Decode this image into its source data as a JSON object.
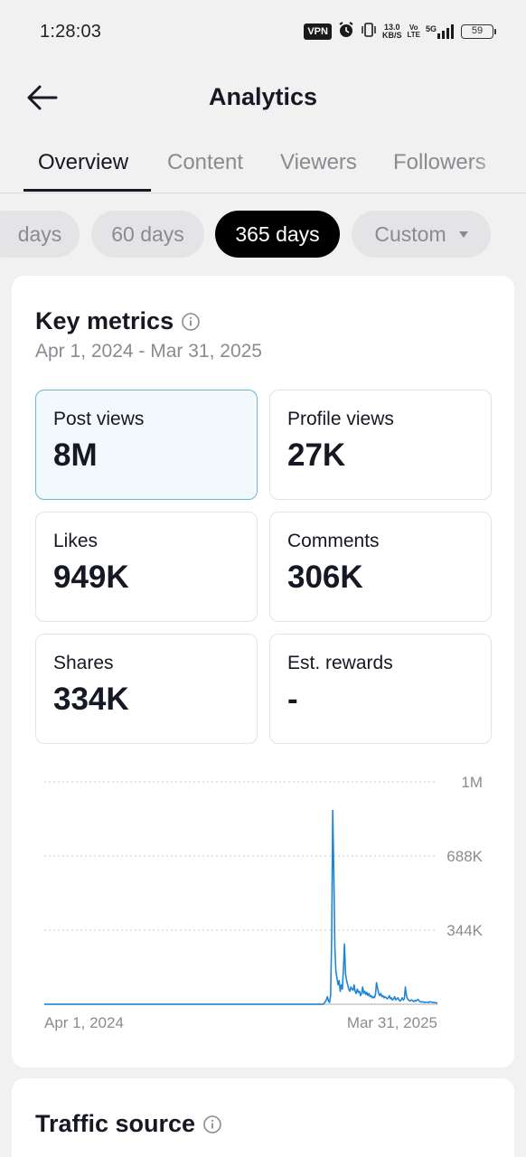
{
  "status_bar": {
    "time": "1:28:03",
    "vpn": "VPN",
    "net_speed_value": "13.0",
    "net_speed_unit": "KB/S",
    "volte_top": "Vo",
    "volte_bottom": "LTE",
    "network": "5G",
    "battery": "59"
  },
  "header": {
    "title": "Analytics"
  },
  "tabs": [
    {
      "label": "Overview",
      "active": true
    },
    {
      "label": "Content",
      "active": false
    },
    {
      "label": "Viewers",
      "active": false
    },
    {
      "label": "Followers",
      "active": false
    }
  ],
  "range_chips": [
    {
      "label": "days",
      "active": false
    },
    {
      "label": "60 days",
      "active": false
    },
    {
      "label": "365 days",
      "active": true
    },
    {
      "label": "Custom",
      "active": false
    }
  ],
  "key_metrics": {
    "title": "Key metrics",
    "date_range": "Apr 1, 2024 - Mar 31, 2025",
    "items": [
      {
        "label": "Post views",
        "value": "8M",
        "selected": true
      },
      {
        "label": "Profile views",
        "value": "27K",
        "selected": false
      },
      {
        "label": "Likes",
        "value": "949K",
        "selected": false
      },
      {
        "label": "Comments",
        "value": "306K",
        "selected": false
      },
      {
        "label": "Shares",
        "value": "334K",
        "selected": false
      },
      {
        "label": "Est. rewards",
        "value": "-",
        "selected": false
      }
    ]
  },
  "chart_data": {
    "type": "line",
    "title": "",
    "xlabel": "",
    "ylabel": "",
    "x_tick_labels": [
      "Apr 1, 2024",
      "Mar 31, 2025"
    ],
    "y_tick_labels": [
      "1M",
      "688K",
      "344K"
    ],
    "y_ticks": [
      1032000,
      688000,
      344000
    ],
    "ylim": [
      0,
      1032000
    ],
    "grid": "horizontal dotted",
    "line_color": "#1f86d6",
    "series": [
      {
        "values": [
          0,
          0,
          0,
          0,
          0,
          0,
          0,
          0,
          0,
          0,
          0,
          0,
          0,
          0,
          0,
          0,
          0,
          0,
          0,
          0,
          0,
          0,
          0,
          0,
          0,
          0,
          0,
          0,
          0,
          0,
          0,
          0,
          0,
          0,
          0,
          0,
          0,
          0,
          0,
          0,
          0,
          0,
          0,
          0,
          0,
          0,
          0,
          0,
          0,
          0,
          0,
          0,
          0,
          0,
          0,
          0,
          0,
          0,
          0,
          0,
          0,
          0,
          0,
          0,
          0,
          0,
          0,
          0,
          0,
          0,
          0,
          0,
          0,
          0,
          0,
          0,
          0,
          0,
          0,
          0,
          0,
          0,
          0,
          0,
          0,
          0,
          0,
          0,
          0,
          0,
          0,
          0,
          0,
          0,
          0,
          0,
          0,
          0,
          0,
          0,
          0,
          0,
          0,
          0,
          0,
          0,
          0,
          0,
          0,
          0,
          0,
          0,
          0,
          0,
          0,
          0,
          0,
          0,
          0,
          0,
          0,
          0,
          0,
          0,
          0,
          0,
          0,
          0,
          0,
          0,
          0,
          0,
          0,
          0,
          0,
          0,
          0,
          0,
          0,
          0,
          0,
          0,
          0,
          0,
          0,
          0,
          0,
          0,
          0,
          0,
          0,
          0,
          0,
          0,
          0,
          0,
          0,
          0,
          0,
          0,
          0,
          0,
          0,
          0,
          0,
          0,
          0,
          0,
          0,
          0,
          0,
          0,
          0,
          0,
          0,
          0,
          0,
          0,
          0,
          0,
          0,
          0,
          0,
          0,
          0,
          0,
          0,
          0,
          0,
          0,
          0,
          0,
          0,
          0,
          0,
          0,
          0,
          0,
          0,
          0,
          0,
          0,
          0,
          0,
          0,
          0,
          0,
          0,
          0,
          0,
          0,
          0,
          0,
          0,
          0,
          0,
          0,
          0,
          0,
          0,
          0,
          0,
          0,
          0,
          0,
          0,
          0,
          0,
          0,
          0,
          0,
          0,
          0,
          0,
          0,
          0,
          0,
          0,
          0,
          0,
          0,
          0,
          0,
          0,
          0,
          0,
          0,
          0,
          0,
          0,
          0,
          0,
          0,
          0,
          0,
          0,
          0,
          0,
          0,
          0,
          0,
          0,
          5000,
          12000,
          20000,
          35000,
          15000,
          8000,
          40000,
          300000,
          900000,
          620000,
          260000,
          150000,
          120000,
          90000,
          110000,
          60000,
          90000,
          70000,
          160000,
          280000,
          140000,
          110000,
          90000,
          70000,
          60000,
          80000,
          70000,
          65000,
          90000,
          60000,
          50000,
          70000,
          55000,
          60000,
          40000,
          50000,
          80000,
          50000,
          60000,
          45000,
          55000,
          40000,
          50000,
          35000,
          40000,
          30000,
          35000,
          30000,
          45000,
          100000,
          75000,
          50000,
          40000,
          50000,
          35000,
          40000,
          30000,
          35000,
          30000,
          25000,
          30000,
          40000,
          25000,
          30000,
          20000,
          25000,
          35000,
          20000,
          25000,
          30000,
          20000,
          15000,
          20000,
          30000,
          20000,
          25000,
          80000,
          40000,
          25000,
          20000,
          15000,
          18000,
          20000,
          15000,
          12000,
          18000,
          15000,
          20000,
          22000,
          15000,
          12000,
          10000,
          12000,
          10000,
          8000,
          10000,
          9000,
          10000,
          8000,
          12000,
          10000,
          9000,
          8000,
          7000,
          8000,
          6000,
          5000
        ]
      }
    ]
  },
  "traffic_source": {
    "title": "Traffic source"
  }
}
